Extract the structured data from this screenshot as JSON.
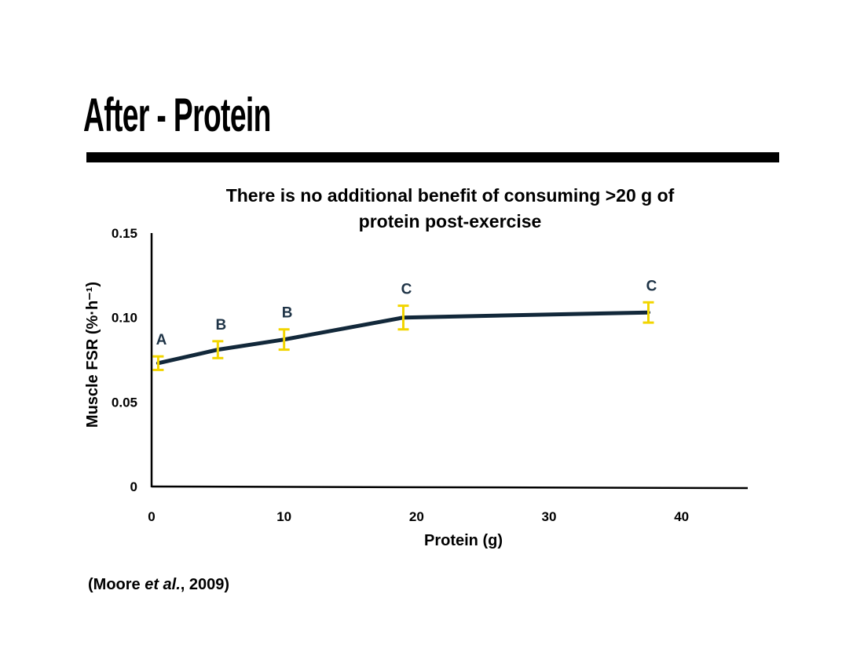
{
  "slide": {
    "title": "After - Protein",
    "citation": {
      "before": "(Moore ",
      "italic": "et al.",
      "after": ", 2009)"
    }
  },
  "chart_data": {
    "type": "line",
    "title_lines": [
      "There is no additional benefit of consuming >20 g of",
      "protein post-exercise"
    ],
    "xlabel": "Protein (g)",
    "ylabel": "Muscle FSR (%·h⁻¹)",
    "xlim": [
      0,
      45
    ],
    "ylim": [
      0,
      0.15
    ],
    "x_ticks": [
      0,
      10,
      20,
      30,
      40
    ],
    "x_tick_labels": [
      "0",
      "10",
      "20",
      "30",
      "40"
    ],
    "y_ticks": [
      0,
      0.05,
      0.1,
      0.15
    ],
    "y_tick_labels": [
      "0",
      "0.05",
      "0.10",
      "0.15"
    ],
    "grid": false,
    "legend": "none",
    "series": [
      {
        "x": [
          0.5,
          5,
          10,
          19,
          37.5
        ],
        "y": [
          0.073,
          0.081,
          0.087,
          0.1,
          0.103
        ],
        "error": [
          0.004,
          0.005,
          0.006,
          0.007,
          0.006
        ],
        "labels": [
          "A",
          "B",
          "B",
          "C",
          "C"
        ]
      }
    ],
    "colors": {
      "line": "#12283a",
      "error_bars": "#f2d500",
      "point_labels": "#1f3447",
      "axes": "#000000"
    }
  }
}
